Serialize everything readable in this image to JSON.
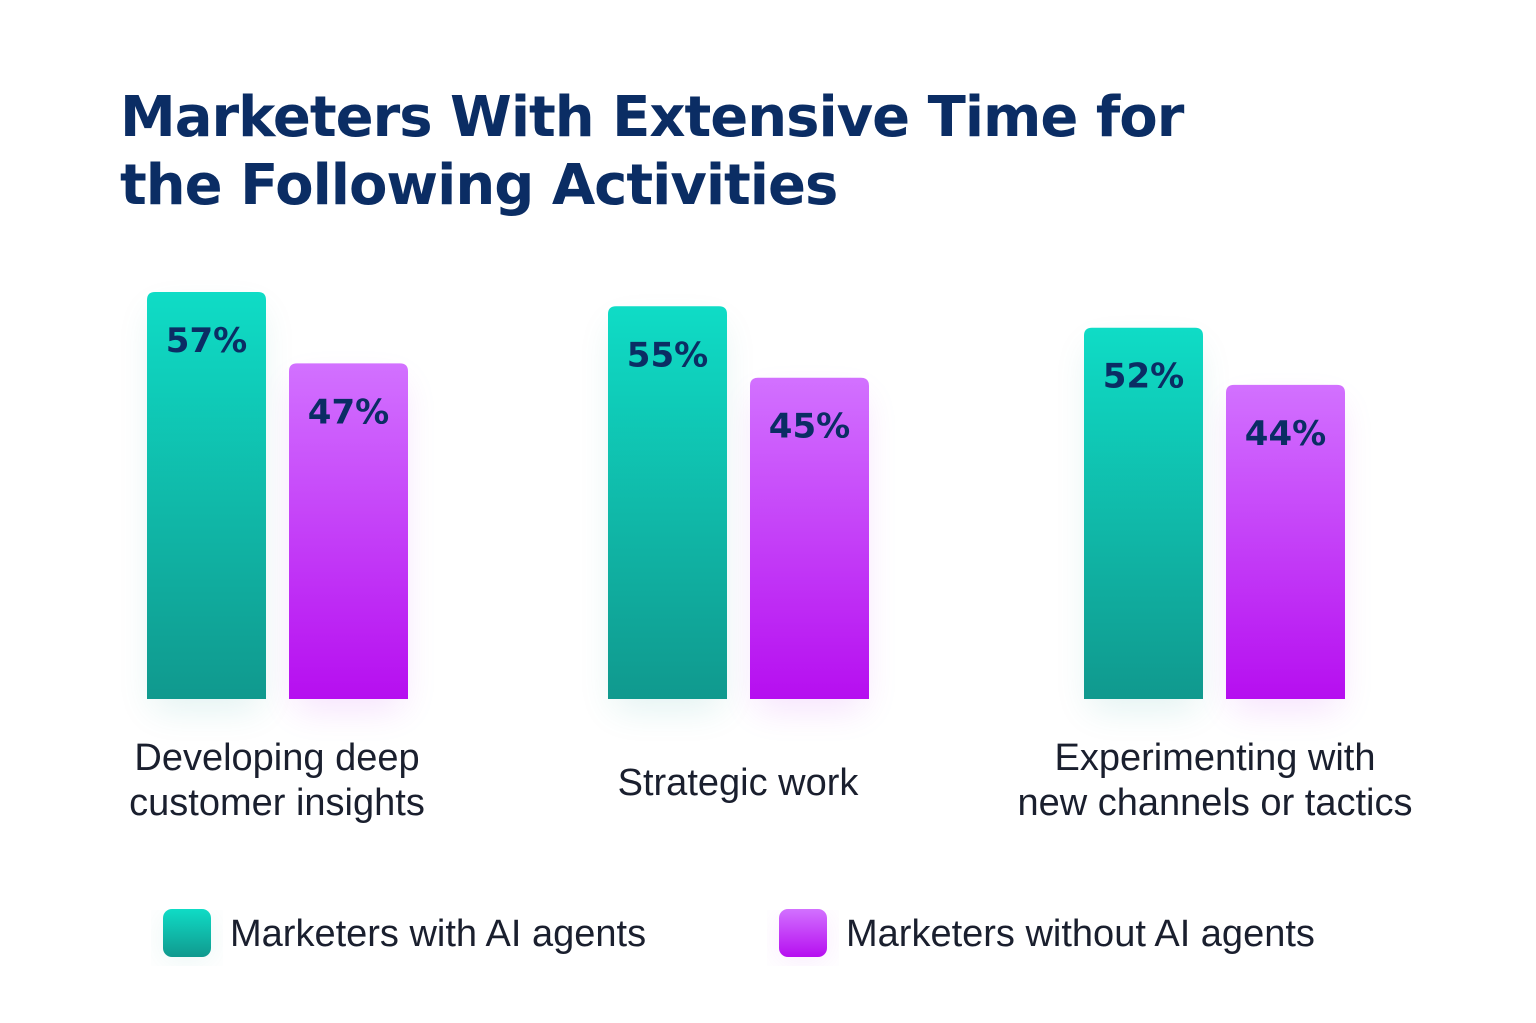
{
  "title_lines": [
    "Marketers With Extensive Time for",
    "the Following Activities"
  ],
  "chart_data": {
    "type": "bar",
    "title": "Marketers With Extensive Time for the Following Activities",
    "categories": [
      [
        "Developing deep",
        "customer insights"
      ],
      [
        "Strategic work"
      ],
      [
        "Experimenting with",
        "new channels or tactics"
      ]
    ],
    "series": [
      {
        "name": "Marketers with AI agents",
        "values": [
          57,
          55,
          52
        ],
        "value_labels": [
          "57%",
          "55%",
          "52%"
        ],
        "color_top": "#0fdcc6",
        "color_bottom": "#10998e"
      },
      {
        "name": "Marketers without AI agents",
        "values": [
          47,
          45,
          44
        ],
        "value_labels": [
          "47%",
          "45%",
          "44%"
        ],
        "color_top": "#d271ff",
        "color_bottom": "#b60ef0"
      }
    ],
    "ylim": [
      0,
      100
    ],
    "grid": false,
    "legend_position": "bottom"
  }
}
